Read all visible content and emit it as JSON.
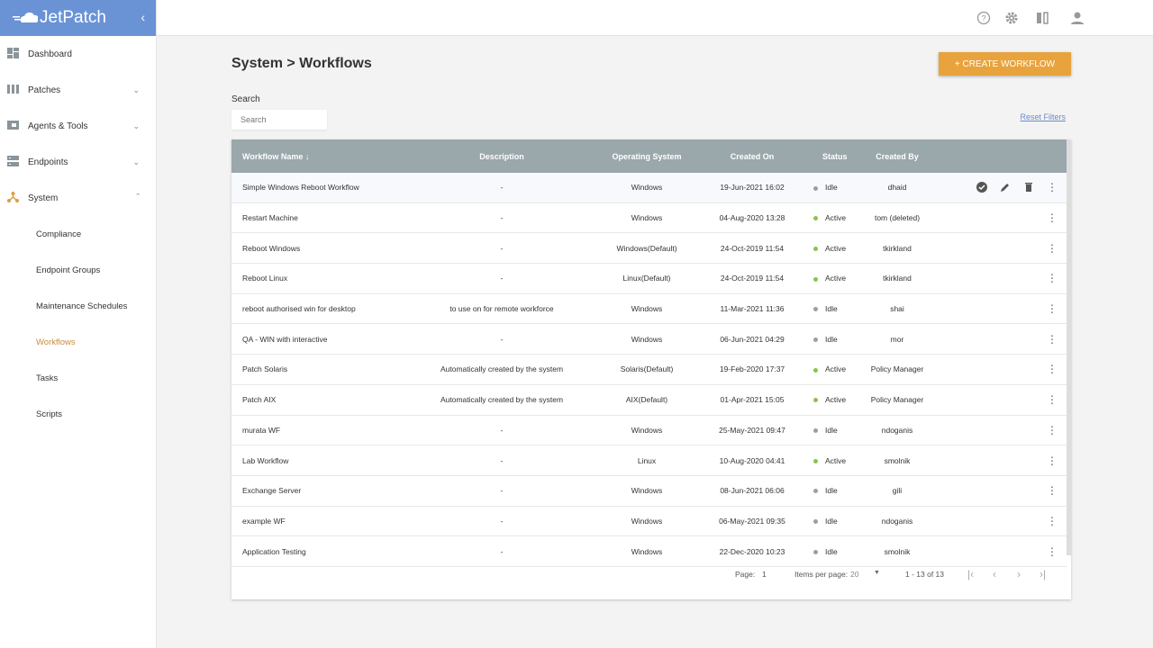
{
  "brand": "JetPatch",
  "sidebar": {
    "items": [
      {
        "label": "Dashboard",
        "icon": "dashboard-icon"
      },
      {
        "label": "Patches",
        "icon": "patches-icon",
        "expandable": true
      },
      {
        "label": "Agents & Tools",
        "icon": "agents-icon",
        "expandable": true
      },
      {
        "label": "Endpoints",
        "icon": "endpoints-icon",
        "expandable": true
      },
      {
        "label": "System",
        "icon": "system-icon",
        "expanded": true
      }
    ],
    "sub_items": [
      "Compliance",
      "Endpoint Groups",
      "Maintenance Schedules",
      "Workflows",
      "Tasks",
      "Scripts"
    ],
    "active_sub": "Workflows"
  },
  "header": {
    "icons": [
      "help-icon",
      "gear-icon",
      "columns-icon",
      "user-icon"
    ]
  },
  "page": {
    "title": "System > Workflows",
    "create_label": "+ CREATE WORKFLOW",
    "search_label": "Search",
    "search_placeholder": "Search",
    "reset_label": "Reset Filters"
  },
  "table": {
    "columns": [
      "Workflow Name ↓",
      "Description",
      "Operating System",
      "Created On",
      "Status",
      "Created By"
    ],
    "rows": [
      [
        "Simple Windows Reboot Workflow",
        "-",
        "Windows",
        "19-Jun-2021 16:02",
        "Idle",
        "dhaid"
      ],
      [
        "Restart Machine",
        "-",
        "Windows",
        "04-Aug-2020 13:28",
        "Active",
        "tom (deleted)"
      ],
      [
        "Reboot Windows",
        "-",
        "Windows(Default)",
        "24-Oct-2019 11:54",
        "Active",
        "tkirkland"
      ],
      [
        "Reboot Linux",
        "-",
        "Linux(Default)",
        "24-Oct-2019 11:54",
        "Active",
        "tkirkland"
      ],
      [
        "reboot authorised win for desktop",
        "to use on for remote workforce",
        "Windows",
        "11-Mar-2021 11:36",
        "Idle",
        "shai"
      ],
      [
        "QA - WIN with interactive",
        "-",
        "Windows",
        "06-Jun-2021 04:29",
        "Idle",
        "mor"
      ],
      [
        "Patch Solaris",
        "Automatically created by the system",
        "Solaris(Default)",
        "19-Feb-2020 17:37",
        "Active",
        "Policy Manager"
      ],
      [
        "Patch AIX",
        "Automatically created by the system",
        "AIX(Default)",
        "01-Apr-2021 15:05",
        "Active",
        "Policy Manager"
      ],
      [
        "murata WF",
        "-",
        "Windows",
        "25-May-2021 09:47",
        "Idle",
        "ndoganis"
      ],
      [
        "Lab Workflow",
        "-",
        "Linux",
        "10-Aug-2020 04:41",
        "Active",
        "smolnik"
      ],
      [
        "Exchange Server",
        "-",
        "Windows",
        "08-Jun-2021 06:06",
        "Idle",
        "gili"
      ],
      [
        "example WF",
        "-",
        "Windows",
        "06-May-2021 09:35",
        "Idle",
        "ndoganis"
      ],
      [
        "Application Testing",
        "-",
        "Windows",
        "22-Dec-2020 10:23",
        "Idle",
        "smolnik"
      ]
    ],
    "status_colors": {
      "Active": "#8bc34a",
      "Idle": "#9e9e9e"
    }
  },
  "pager": {
    "page_label": "Page:",
    "page": "1",
    "ipp_label": "Items per page:",
    "ipp": "20",
    "range": "1 - 13 of 13"
  },
  "colors": {
    "brand": "#6a93d6",
    "accent": "#e8a33d",
    "header": "#9aa7ab"
  }
}
